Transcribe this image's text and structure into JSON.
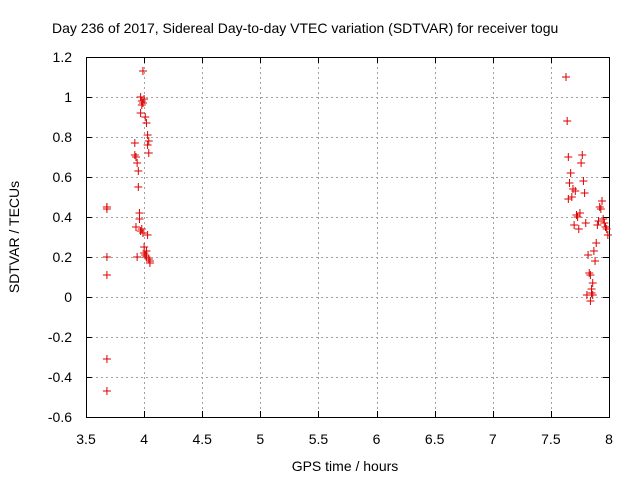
{
  "chart_data": {
    "type": "scatter",
    "title": "Day 236 of 2017, Sidereal Day-to-day VTEC variation (SDTVAR) for receiver togu",
    "xlabel": "GPS time / hours",
    "ylabel": "SDTVAR / TECUs",
    "xlim": [
      3.5,
      8
    ],
    "ylim": [
      -0.6,
      1.2
    ],
    "xticks": [
      3.5,
      4,
      4.5,
      5,
      5.5,
      6,
      6.5,
      7,
      7.5,
      8
    ],
    "xtick_labels": [
      "3.5",
      "4",
      "4.5",
      "5",
      "5.5",
      "6",
      "6.5",
      "7",
      "7.5",
      "8"
    ],
    "yticks": [
      -0.6,
      -0.4,
      -0.2,
      0,
      0.2,
      0.4,
      0.6,
      0.8,
      1,
      1.2
    ],
    "ytick_labels": [
      "-0.6",
      "-0.4",
      "-0.2",
      "0",
      "0.2",
      "0.4",
      "0.6",
      "0.8",
      "1",
      "1.2"
    ],
    "grid": true,
    "marker": "+",
    "series": [
      {
        "name": "SDTVAR",
        "color": "#dd0000",
        "x": [
          3.68,
          3.68,
          3.68,
          3.68,
          3.68,
          3.68,
          3.68,
          3.92,
          3.92,
          3.93,
          3.93,
          3.94,
          3.94,
          3.95,
          3.95,
          3.96,
          3.96,
          3.97,
          3.97,
          3.97,
          3.98,
          3.98,
          3.98,
          3.99,
          3.99,
          3.99,
          4.0,
          4.0,
          4.0,
          4.01,
          4.01,
          4.02,
          4.02,
          4.02,
          4.03,
          4.03,
          4.03,
          4.04,
          4.04,
          4.04,
          4.05,
          4.05,
          7.63,
          7.64,
          7.65,
          7.65,
          7.66,
          7.67,
          7.68,
          7.69,
          7.7,
          7.71,
          7.72,
          7.73,
          7.74,
          7.75,
          7.76,
          7.77,
          7.78,
          7.79,
          7.8,
          7.81,
          7.82,
          7.83,
          7.84,
          7.85,
          7.86,
          7.87,
          7.88,
          7.89,
          7.9,
          7.91,
          7.92,
          7.93,
          7.94,
          7.95,
          7.96,
          7.97,
          7.98,
          7.99,
          7.84,
          7.86,
          7.85
        ],
        "y": [
          0.45,
          0.44,
          0.2,
          0.11,
          -0.31,
          -0.47,
          0.45,
          0.77,
          0.71,
          0.7,
          0.35,
          0.67,
          0.2,
          0.63,
          0.55,
          0.42,
          0.39,
          0.92,
          1.0,
          0.33,
          0.98,
          0.96,
          0.34,
          1.13,
          0.97,
          0.32,
          0.99,
          0.25,
          0.22,
          0.9,
          0.21,
          0.87,
          0.23,
          0.2,
          0.81,
          0.76,
          0.31,
          0.78,
          0.72,
          0.19,
          0.18,
          0.17,
          1.1,
          0.88,
          0.7,
          0.49,
          0.57,
          0.62,
          0.5,
          0.54,
          0.36,
          0.53,
          0.41,
          0.4,
          0.34,
          0.42,
          0.67,
          0.71,
          0.58,
          0.52,
          0.37,
          0.01,
          0.21,
          0.12,
          0.11,
          0.04,
          0.07,
          0.23,
          0.18,
          0.27,
          0.36,
          0.38,
          0.45,
          0.44,
          0.48,
          0.39,
          0.37,
          0.35,
          0.34,
          0.31,
          -0.02,
          0.01,
          0.02
        ]
      }
    ]
  }
}
